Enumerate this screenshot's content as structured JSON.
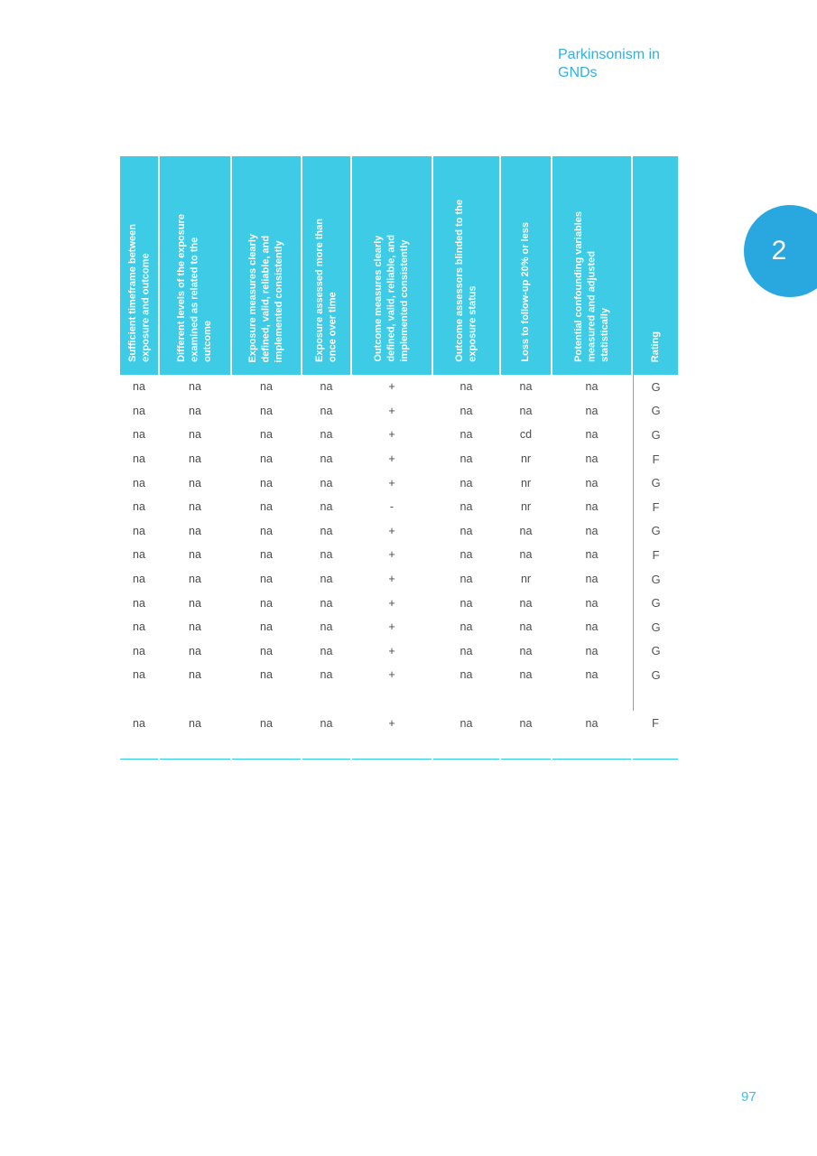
{
  "page": {
    "running_head": "Parkinsonism in GNDs",
    "chapter_number": "2",
    "page_number": "97"
  },
  "table": {
    "columns": [
      {
        "label": "Sufficient timeframe between\nexposure and outcome"
      },
      {
        "label": "Different levels of the exposure\nexamined as related to the\noutcome"
      },
      {
        "label": "Exposure measures clearly\ndefined, valid, reliable, and\nimplemented consistently"
      },
      {
        "label": "Exposure assessed more than\nonce over time"
      },
      {
        "label": "Outcome measures clearly\ndefined, valid, reliable, and\nimplemented consistently"
      },
      {
        "label": "Outcome assessors blinded to the\nexposure status"
      },
      {
        "label": "Loss to follow-up 20% or less"
      },
      {
        "label": "Potential confounding variables\nmeasured and adjusted\nstatistically"
      },
      {
        "label": "Rating"
      }
    ],
    "rows": [
      {
        "values": [
          "na",
          "na",
          "na",
          "na",
          "+",
          "na",
          "na",
          "na"
        ],
        "rating": "G"
      },
      {
        "values": [
          "na",
          "na",
          "na",
          "na",
          "+",
          "na",
          "na",
          "na"
        ],
        "rating": "G"
      },
      {
        "values": [
          "na",
          "na",
          "na",
          "na",
          "+",
          "na",
          "cd",
          "na"
        ],
        "rating": "G"
      },
      {
        "values": [
          "na",
          "na",
          "na",
          "na",
          "+",
          "na",
          "nr",
          "na"
        ],
        "rating": "F"
      },
      {
        "values": [
          "na",
          "na",
          "na",
          "na",
          "+",
          "na",
          "nr",
          "na"
        ],
        "rating": "G"
      },
      {
        "values": [
          "na",
          "na",
          "na",
          "na",
          "-",
          "na",
          "nr",
          "na"
        ],
        "rating": "F"
      },
      {
        "values": [
          "na",
          "na",
          "na",
          "na",
          "+",
          "na",
          "na",
          "na"
        ],
        "rating": "G"
      },
      {
        "values": [
          "na",
          "na",
          "na",
          "na",
          "+",
          "na",
          "na",
          "na"
        ],
        "rating": "F"
      },
      {
        "values": [
          "na",
          "na",
          "na",
          "na",
          "+",
          "na",
          "nr",
          "na"
        ],
        "rating": "G"
      },
      {
        "values": [
          "na",
          "na",
          "na",
          "na",
          "+",
          "na",
          "na",
          "na"
        ],
        "rating": "G"
      },
      {
        "values": [
          "na",
          "na",
          "na",
          "na",
          "+",
          "na",
          "na",
          "na"
        ],
        "rating": "G"
      },
      {
        "values": [
          "na",
          "na",
          "na",
          "na",
          "+",
          "na",
          "na",
          "na"
        ],
        "rating": "G"
      },
      {
        "values": [
          "na",
          "na",
          "na",
          "na",
          "+",
          "na",
          "na",
          "na"
        ],
        "rating": "G"
      },
      {
        "values": [
          "na",
          "na",
          "na",
          "na",
          "+",
          "na",
          "na",
          "na"
        ],
        "rating": "F",
        "separated": true
      }
    ]
  },
  "colors": {
    "table_header_bg": "#3DCBE5",
    "table_line": "#2BCBE8",
    "badge_bg": "#29A8DF",
    "heading_text": "#33AFE4",
    "page_number_text": "#3FBCEA",
    "cell_text": "#4D4D4D",
    "rating_text": "#555555"
  }
}
